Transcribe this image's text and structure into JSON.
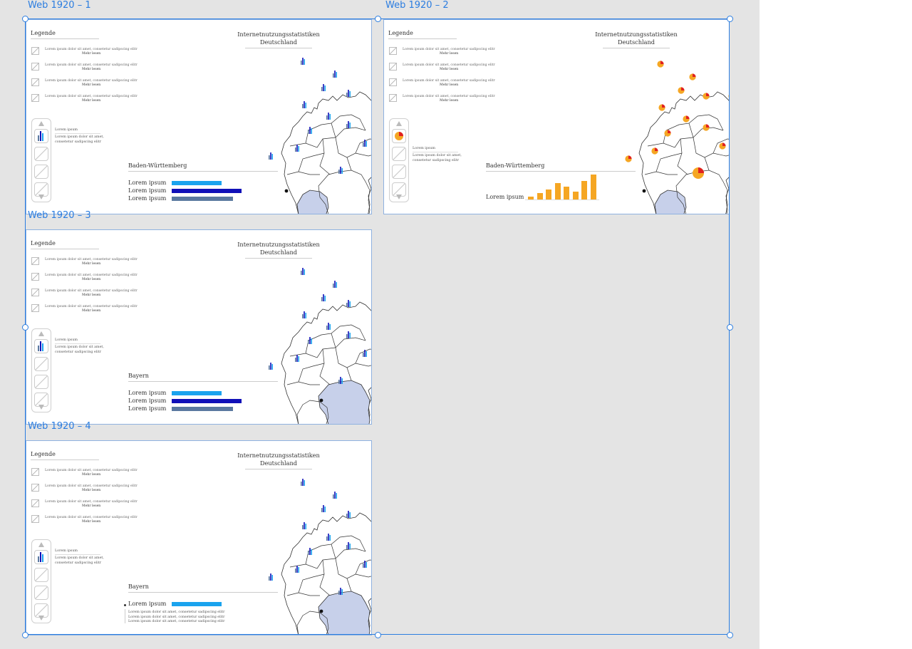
{
  "canvas": {
    "background": "#e4e4e4",
    "selection_color": "#2b7de0"
  },
  "artboards": [
    {
      "title": "Web 1920 – 1",
      "legend_title": "Legende",
      "legend_items": [
        {
          "text": "Lorem ipsum dolor sit amet, consetetur sadipscing elitr",
          "more": "Mehr lesen"
        },
        {
          "text": "Lorem ipsum dolor sit amet, consetetur sadipscing elitr",
          "more": "Mehr lesen"
        },
        {
          "text": "Lorem ipsum dolor sit amet, consetetur sadipscing elitr",
          "more": "Mehr lesen"
        },
        {
          "text": "Lorem ipsum dolor sit amet, consetetur sadipscing elitr",
          "more": "Mehr lesen"
        }
      ],
      "side_title": "Lorem ipsum",
      "side_desc_1": "Lorem ipsum dolor sit amet,",
      "side_desc_2": "consetetur sadipscing elitr",
      "map_title_1": "Internetnutzungsstatistiken",
      "map_title_2": "Deutschland",
      "region": "Baden-Württemberg",
      "bars": [
        {
          "label": "Lorem ipsum",
          "value": 0.71,
          "color": "#1aa3ee"
        },
        {
          "label": "Lorem ipsum",
          "value": 1.0,
          "color": "#1010b8"
        },
        {
          "label": "Lorem ipsum",
          "value": 0.88,
          "color": "#5a79a0"
        }
      ]
    },
    {
      "title": "Web 1920 – 2",
      "legend_title": "Legende",
      "legend_items": [
        {
          "text": "Lorem ipsum dolor sit amet, consetetur sadipscing elitr",
          "more": "Mehr lesen"
        },
        {
          "text": "Lorem ipsum dolor sit amet, consetetur sadipscing elitr",
          "more": "Mehr lesen"
        },
        {
          "text": "Lorem ipsum dolor sit amet, consetetur sadipscing elitr",
          "more": "Mehr lesen"
        },
        {
          "text": "Lorem ipsum dolor sit amet, consetetur sadipscing elitr",
          "more": "Mehr lesen"
        }
      ],
      "side_title": "Lorem ipsum",
      "side_desc_1": "Lorem ipsum dolor sit amet,",
      "side_desc_2": "consetetur sadipscing elitr",
      "map_title_1": "Internetnutzungsstatistiken",
      "map_title_2": "Deutschland",
      "region": "Baden-Württemberg",
      "column_label": "Lorem ipsum",
      "columns": [
        0.1,
        0.25,
        0.4,
        0.65,
        0.52,
        0.3,
        0.75,
        1.0
      ],
      "column_color": "#f5a623"
    },
    {
      "title": "Web 1920 – 3",
      "legend_title": "Legende",
      "legend_items": [
        {
          "text": "Lorem ipsum dolor sit amet, consetetur sadipscing elitr",
          "more": "Mehr lesen"
        },
        {
          "text": "Lorem ipsum dolor sit amet, consetetur sadipscing elitr",
          "more": "Mehr lesen"
        },
        {
          "text": "Lorem ipsum dolor sit amet, consetetur sadipscing elitr",
          "more": "Mehr lesen"
        },
        {
          "text": "Lorem ipsum dolor sit amet, consetetur sadipscing elitr",
          "more": "Mehr lesen"
        }
      ],
      "side_title": "Lorem ipsum",
      "side_desc_1": "Lorem ipsum dolor sit amet,",
      "side_desc_2": "consetetur sadipscing elitr",
      "map_title_1": "Internetnutzungsstatistiken",
      "map_title_2": "Deutschland",
      "region": "Bayern",
      "bars": [
        {
          "label": "Lorem ipsum",
          "value": 0.71,
          "color": "#1aa3ee"
        },
        {
          "label": "Lorem ipsum",
          "value": 1.0,
          "color": "#1010b8"
        },
        {
          "label": "Lorem ipsum",
          "value": 0.88,
          "color": "#5a79a0"
        }
      ]
    },
    {
      "title": "Web 1920 – 4",
      "legend_title": "Legende",
      "legend_items": [
        {
          "text": "Lorem ipsum dolor sit amet, consetetur sadipscing elitr",
          "more": "Mehr lesen"
        },
        {
          "text": "Lorem ipsum dolor sit amet, consetetur sadipscing elitr",
          "more": "Mehr lesen"
        },
        {
          "text": "Lorem ipsum dolor sit amet, consetetur sadipscing elitr",
          "more": "Mehr lesen"
        },
        {
          "text": "Lorem ipsum dolor sit amet, consetetur sadipscing elitr",
          "more": "Mehr lesen"
        }
      ],
      "side_title": "Lorem ipsum",
      "side_desc_1": "Lorem ipsum dolor sit amet,",
      "side_desc_2": "consetetur sadipscing elitr",
      "map_title_1": "Internetnutzungsstatistiken",
      "map_title_2": "Deutschland",
      "region": "Bayern",
      "bars": [
        {
          "label": "Lorem ipsum",
          "value": 0.71,
          "color": "#1aa3ee"
        }
      ],
      "bullet_lines": [
        "Lorem ipsum dolor sit amet, consetetur sadipscing elitr",
        "Lorem ipsum dolor sit amet, consetetur sadipscing elitr",
        "Lorem ipsum dolor sit amet, consetetur sadipscing elitr"
      ]
    }
  ]
}
